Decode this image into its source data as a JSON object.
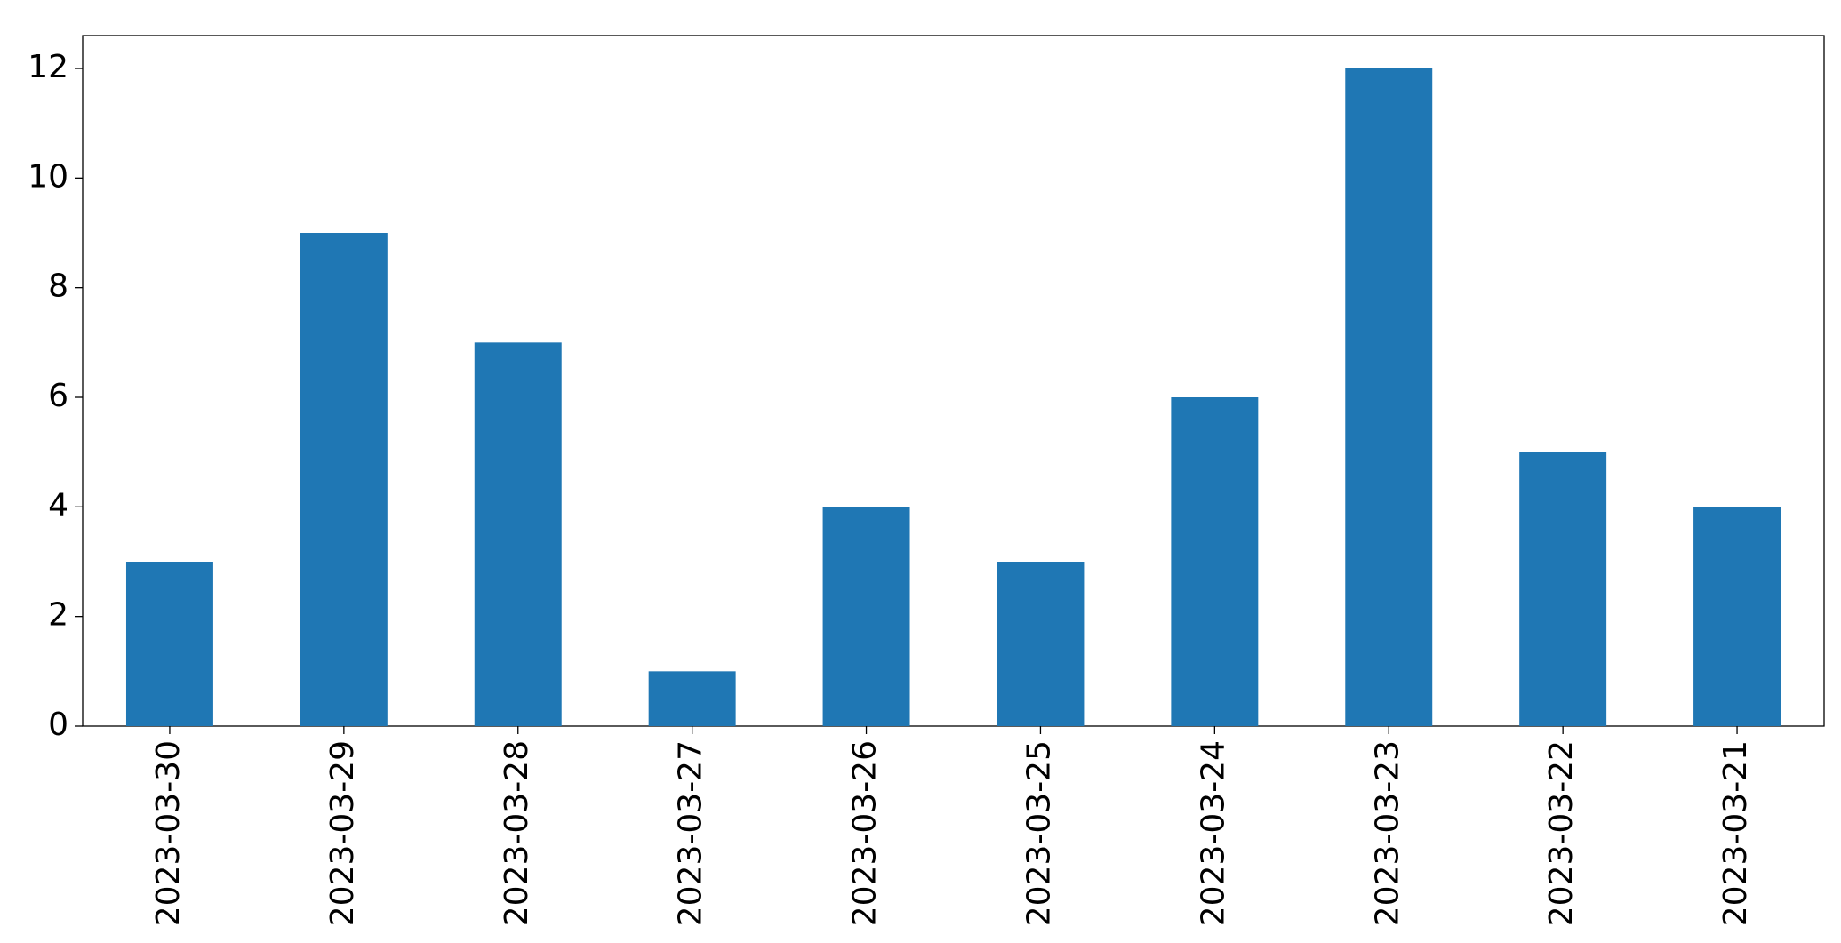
{
  "chart_data": {
    "type": "bar",
    "categories": [
      "2023-03-30",
      "2023-03-29",
      "2023-03-28",
      "2023-03-27",
      "2023-03-26",
      "2023-03-25",
      "2023-03-24",
      "2023-03-23",
      "2023-03-22",
      "2023-03-21"
    ],
    "values": [
      3,
      9,
      7,
      1,
      4,
      3,
      6,
      12,
      5,
      4
    ],
    "color": "#1f77b4",
    "ylim": [
      0,
      12.6
    ],
    "yticks": [
      0,
      2,
      4,
      6,
      8,
      10,
      12
    ],
    "grid": false
  }
}
